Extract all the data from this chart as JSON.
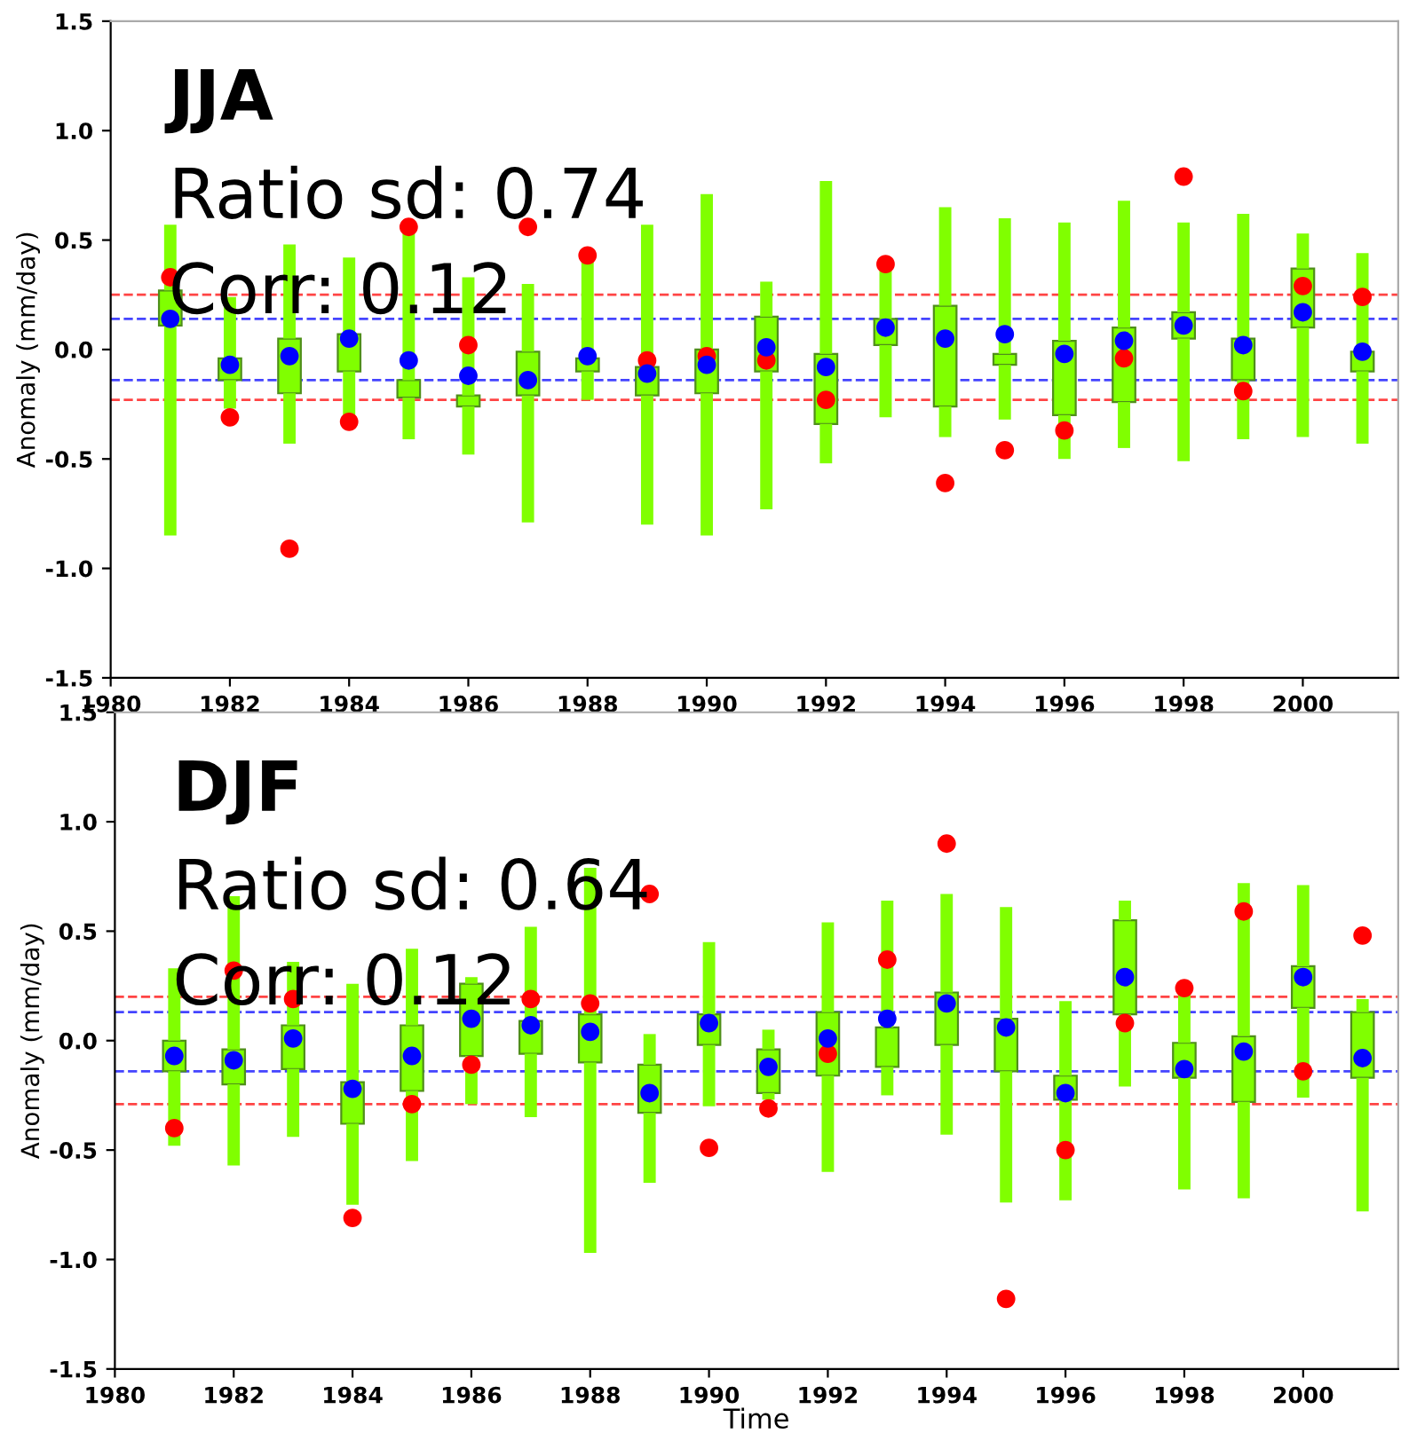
{
  "chart_data": [
    {
      "type": "box",
      "title": "JJA",
      "annotations": [
        "Ratio sd: 0.74",
        "Corr: 0.12"
      ],
      "ylabel": "Anomaly (mm/day)",
      "x": [
        1981,
        1982,
        1983,
        1984,
        1985,
        1986,
        1987,
        1988,
        1989,
        1990,
        1991,
        1992,
        1993,
        1994,
        1995,
        1996,
        1997,
        1998,
        1999,
        2000,
        2001
      ],
      "xlim": [
        1980,
        2001.6
      ],
      "xticks": [
        1980,
        1982,
        1984,
        1986,
        1988,
        1990,
        1992,
        1994,
        1996,
        1998,
        2000
      ],
      "ylim": [
        -1.5,
        1.5
      ],
      "yticks": [
        -1.5,
        {
          "value": -1,
          "label": "-1.0"
        },
        -0.5,
        {
          "value": 0,
          "label": "0.0"
        },
        0.5,
        {
          "value": 1,
          "label": "1.0"
        },
        1.5
      ],
      "grid": false,
      "series": [
        {
          "type": "box",
          "color": "#80ff00",
          "boxes": [
            {
              "low": -0.85,
              "q1": 0.11,
              "q3": 0.27,
              "high": 0.57
            },
            {
              "low": -0.27,
              "q1": -0.14,
              "q3": -0.04,
              "high": 0.24
            },
            {
              "low": -0.43,
              "q1": -0.2,
              "q3": 0.05,
              "high": 0.48
            },
            {
              "low": -0.3,
              "q1": -0.1,
              "q3": 0.07,
              "high": 0.42
            },
            {
              "low": -0.41,
              "q1": -0.22,
              "q3": -0.14,
              "high": 0.55
            },
            {
              "low": -0.48,
              "q1": -0.26,
              "q3": -0.21,
              "high": 0.33
            },
            {
              "low": -0.79,
              "q1": -0.21,
              "q3": -0.01,
              "high": 0.3
            },
            {
              "low": -0.23,
              "q1": -0.1,
              "q3": -0.04,
              "high": 0.4
            },
            {
              "low": -0.8,
              "q1": -0.21,
              "q3": -0.08,
              "high": 0.57
            },
            {
              "low": -0.85,
              "q1": -0.2,
              "q3": 0.0,
              "high": 0.71
            },
            {
              "low": -0.73,
              "q1": -0.1,
              "q3": 0.15,
              "high": 0.31
            },
            {
              "low": -0.52,
              "q1": -0.34,
              "q3": -0.02,
              "high": 0.77
            },
            {
              "low": -0.31,
              "q1": 0.02,
              "q3": 0.14,
              "high": 0.36
            },
            {
              "low": -0.4,
              "q1": -0.26,
              "q3": 0.2,
              "high": 0.65
            },
            {
              "low": -0.32,
              "q1": -0.07,
              "q3": -0.02,
              "high": 0.6
            },
            {
              "low": -0.5,
              "q1": -0.3,
              "q3": 0.04,
              "high": 0.58
            },
            {
              "low": -0.45,
              "q1": -0.24,
              "q3": 0.1,
              "high": 0.68
            },
            {
              "low": -0.51,
              "q1": 0.05,
              "q3": 0.17,
              "high": 0.58
            },
            {
              "low": -0.41,
              "q1": -0.14,
              "q3": 0.05,
              "high": 0.62
            },
            {
              "low": -0.4,
              "q1": 0.1,
              "q3": 0.37,
              "high": 0.53
            },
            {
              "low": -0.43,
              "q1": -0.1,
              "q3": -0.01,
              "high": 0.44
            }
          ]
        },
        {
          "type": "scatter",
          "color": "#ff0000",
          "marker": "circle",
          "values": [
            0.33,
            -0.31,
            -0.91,
            -0.33,
            0.56,
            0.02,
            0.56,
            0.43,
            -0.05,
            -0.03,
            -0.05,
            -0.23,
            0.39,
            -0.61,
            -0.46,
            -0.37,
            -0.04,
            0.79,
            -0.19,
            0.29,
            0.24
          ]
        },
        {
          "type": "scatter",
          "color": "#0000ff",
          "marker": "circle",
          "values": [
            0.14,
            -0.07,
            -0.03,
            0.05,
            -0.05,
            -0.12,
            -0.14,
            -0.03,
            -0.11,
            -0.07,
            0.01,
            -0.08,
            0.1,
            0.05,
            0.07,
            -0.02,
            0.04,
            0.11,
            0.02,
            0.17,
            -0.01
          ]
        }
      ],
      "ref_lines": [
        {
          "axis": "y",
          "value": 0.25,
          "color": "#ff4444",
          "line_style": "dashed"
        },
        {
          "axis": "y",
          "value": -0.23,
          "color": "#ff4444",
          "line_style": "dashed"
        },
        {
          "axis": "y",
          "value": 0.14,
          "color": "#4444ff",
          "line_style": "dashed"
        },
        {
          "axis": "y",
          "value": -0.14,
          "color": "#4444ff",
          "line_style": "dashed"
        }
      ]
    },
    {
      "type": "box",
      "title": "DJF",
      "annotations": [
        "Ratio sd: 0.64",
        "Corr: 0.12"
      ],
      "xlabel": "Time",
      "ylabel": "Anomaly (mm/day)",
      "x": [
        1981,
        1982,
        1983,
        1984,
        1985,
        1986,
        1987,
        1988,
        1989,
        1990,
        1991,
        1992,
        1993,
        1994,
        1995,
        1996,
        1997,
        1998,
        1999,
        2000,
        2001
      ],
      "xlim": [
        1980,
        2001.6
      ],
      "xticks": [
        1980,
        1982,
        1984,
        1986,
        1988,
        1990,
        1992,
        1994,
        1996,
        1998,
        2000
      ],
      "ylim": [
        -1.5,
        1.5
      ],
      "yticks": [
        -1.5,
        {
          "value": -1,
          "label": "-1.0"
        },
        -0.5,
        {
          "value": 0,
          "label": "0.0"
        },
        0.5,
        {
          "value": 1,
          "label": "1.0"
        },
        1.5
      ],
      "grid": false,
      "series": [
        {
          "type": "box",
          "color": "#80ff00",
          "boxes": [
            {
              "low": -0.48,
              "q1": -0.14,
              "q3": 0.0,
              "high": 0.33
            },
            {
              "low": -0.57,
              "q1": -0.2,
              "q3": -0.04,
              "high": 0.66
            },
            {
              "low": -0.44,
              "q1": -0.13,
              "q3": 0.07,
              "high": 0.36
            },
            {
              "low": -0.75,
              "q1": -0.38,
              "q3": -0.19,
              "high": 0.26
            },
            {
              "low": -0.55,
              "q1": -0.23,
              "q3": 0.07,
              "high": 0.42
            },
            {
              "low": -0.29,
              "q1": -0.07,
              "q3": 0.26,
              "high": 0.29
            },
            {
              "low": -0.35,
              "q1": -0.06,
              "q3": 0.09,
              "high": 0.52
            },
            {
              "low": -0.97,
              "q1": -0.1,
              "q3": 0.12,
              "high": 0.79
            },
            {
              "low": -0.65,
              "q1": -0.33,
              "q3": -0.11,
              "high": 0.03
            },
            {
              "low": -0.3,
              "q1": -0.02,
              "q3": 0.12,
              "high": 0.45
            },
            {
              "low": -0.27,
              "q1": -0.24,
              "q3": -0.04,
              "high": 0.05
            },
            {
              "low": -0.6,
              "q1": -0.16,
              "q3": 0.13,
              "high": 0.54
            },
            {
              "low": -0.25,
              "q1": -0.12,
              "q3": 0.06,
              "high": 0.64
            },
            {
              "low": -0.43,
              "q1": -0.02,
              "q3": 0.22,
              "high": 0.67
            },
            {
              "low": -0.74,
              "q1": -0.14,
              "q3": 0.1,
              "high": 0.61
            },
            {
              "low": -0.73,
              "q1": -0.27,
              "q3": -0.16,
              "high": 0.18
            },
            {
              "low": -0.21,
              "q1": 0.12,
              "q3": 0.55,
              "high": 0.64
            },
            {
              "low": -0.68,
              "q1": -0.17,
              "q3": -0.01,
              "high": 0.22
            },
            {
              "low": -0.72,
              "q1": -0.28,
              "q3": 0.02,
              "high": 0.72
            },
            {
              "low": -0.26,
              "q1": 0.15,
              "q3": 0.34,
              "high": 0.71
            },
            {
              "low": -0.78,
              "q1": -0.17,
              "q3": 0.13,
              "high": 0.19
            }
          ]
        },
        {
          "type": "scatter",
          "color": "#ff0000",
          "marker": "circle",
          "values": [
            -0.4,
            0.32,
            0.19,
            -0.81,
            -0.29,
            -0.11,
            0.19,
            0.17,
            0.67,
            -0.49,
            -0.31,
            -0.06,
            0.37,
            0.9,
            -1.18,
            -0.5,
            0.08,
            0.24,
            0.59,
            -0.14,
            0.48
          ]
        },
        {
          "type": "scatter",
          "color": "#0000ff",
          "marker": "circle",
          "values": [
            -0.07,
            -0.09,
            0.01,
            -0.22,
            -0.07,
            0.1,
            0.07,
            0.04,
            -0.24,
            0.08,
            -0.12,
            0.01,
            0.1,
            0.17,
            0.06,
            -0.24,
            0.29,
            -0.13,
            -0.05,
            0.29,
            -0.08
          ]
        }
      ],
      "ref_lines": [
        {
          "axis": "y",
          "value": 0.2,
          "color": "#ff4444",
          "line_style": "dashed"
        },
        {
          "axis": "y",
          "value": -0.29,
          "color": "#ff4444",
          "line_style": "dashed"
        },
        {
          "axis": "y",
          "value": 0.13,
          "color": "#4444ff",
          "line_style": "dashed"
        },
        {
          "axis": "y",
          "value": -0.14,
          "color": "#4444ff",
          "line_style": "dashed"
        }
      ]
    }
  ]
}
